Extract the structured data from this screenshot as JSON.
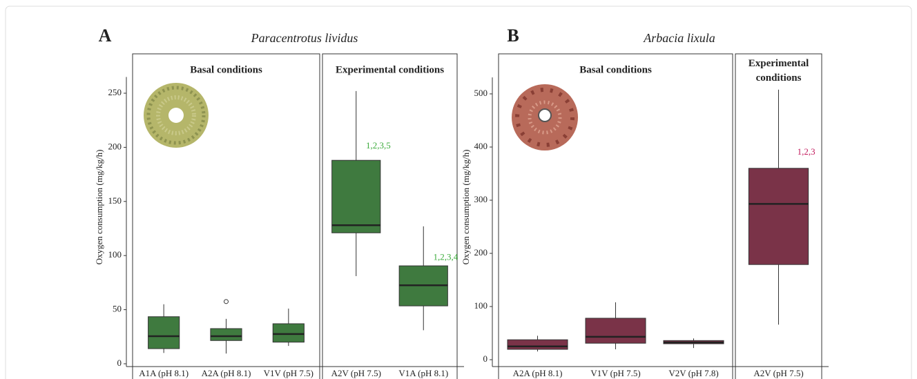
{
  "chart_data": [
    {
      "type": "box",
      "panel_label": "A",
      "title": "Paracentrotus lividus",
      "ylabel": "Oxygen consumption (mg/kg/h)",
      "ylim": [
        -2,
        265
      ],
      "yticks": [
        0,
        50,
        100,
        150,
        200,
        250
      ],
      "color": "#3f7a3f",
      "annotation_color": "#3aaa3a",
      "groups": [
        {
          "title": "Basal conditions",
          "boxes": [
            {
              "category": "A1A (pH 8.1)",
              "min": 10,
              "q1": 14,
              "median": 25.5,
              "q3": 43.5,
              "max": 55
            },
            {
              "category": "A2A (pH 8.1)",
              "min": 9.5,
              "q1": 21.5,
              "median": 25.5,
              "q3": 32.5,
              "max": 41.5,
              "outliers": [
                57.5
              ]
            },
            {
              "category": "V1V (pH 7.5)",
              "min": 16.5,
              "q1": 20,
              "median": 27.5,
              "q3": 37,
              "max": 51
            }
          ]
        },
        {
          "title": "Experimental conditions",
          "boxes": [
            {
              "category": "A2V (pH 7.5)",
              "min": 81,
              "q1": 121,
              "median": 128,
              "q3": 188,
              "max": 252,
              "annotation": "1,2,3,5"
            },
            {
              "category": "V1A (pH 8.1)",
              "min": 31,
              "q1": 53.5,
              "median": 72.5,
              "q3": 90.5,
              "max": 127,
              "annotation": "1,2,3,4"
            }
          ]
        }
      ]
    },
    {
      "type": "box",
      "panel_label": "B",
      "title": "Arbacia lixula",
      "ylabel": "Oxygen consumption (mg/kg/h)",
      "ylim": [
        -8,
        531
      ],
      "yticks": [
        0,
        100,
        200,
        300,
        400,
        500
      ],
      "color": "#7a3348",
      "annotation_color": "#c2185b",
      "groups": [
        {
          "title": "Basal conditions",
          "boxes": [
            {
              "category": "A2A (pH 8.1)",
              "min": 15.5,
              "q1": 19.5,
              "median": 25,
              "q3": 37.5,
              "max": 45
            },
            {
              "category": "V1V (pH 7.5)",
              "min": 19.5,
              "q1": 31,
              "median": 43,
              "q3": 78,
              "max": 108
            },
            {
              "category": "V2V (pH 7.8)",
              "min": 22,
              "q1": 30,
              "median": 32.5,
              "q3": 36,
              "max": 40
            }
          ]
        },
        {
          "title": "Experimental conditions",
          "boxes": [
            {
              "category": "A2V (pH 7.5)",
              "min": 66,
              "q1": 179,
              "median": 293,
              "q3": 360,
              "max": 508,
              "annotation": "1,2,3"
            }
          ]
        }
      ]
    }
  ]
}
